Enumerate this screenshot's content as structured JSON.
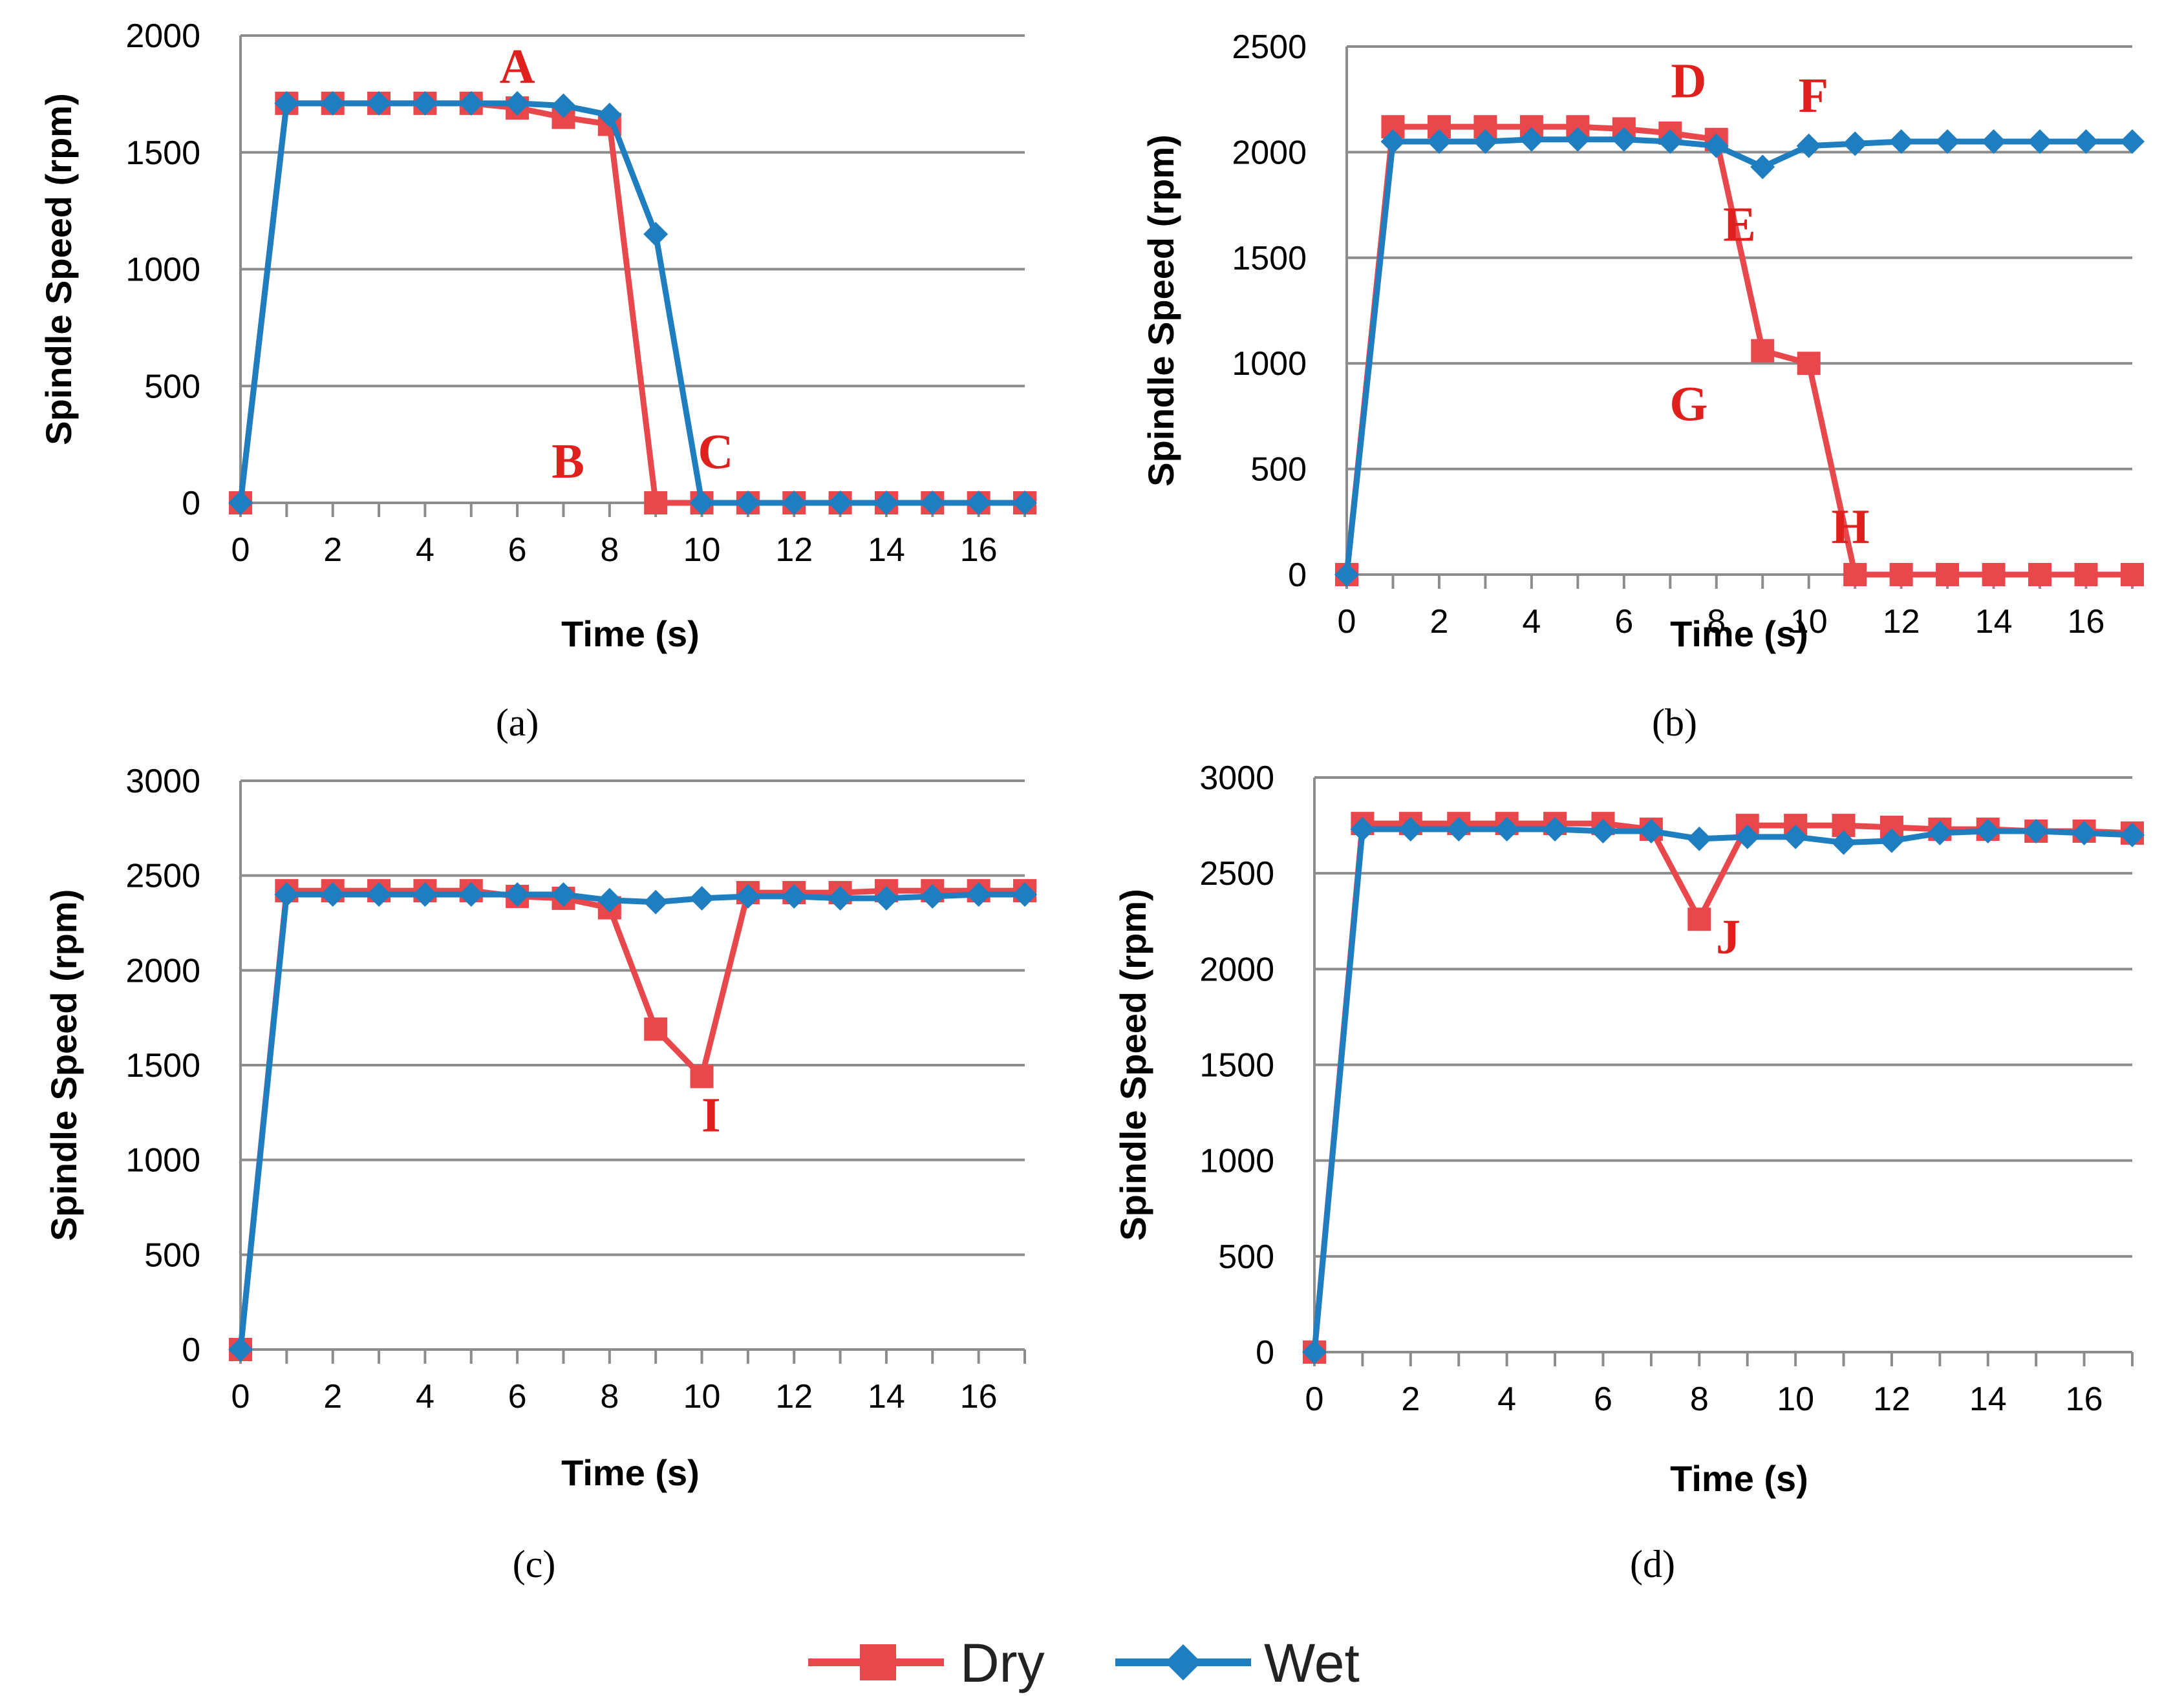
{
  "colors": {
    "dry": "#e8474c",
    "dry_marker": "#e8474c",
    "wet": "#1f7ebf",
    "wet_marker": "#1f7ebf",
    "annotation": "#e0201c",
    "grid": "#8c8c8c"
  },
  "legend": {
    "placement": "bottom-center",
    "items": [
      {
        "name": "Dry",
        "marker": "square",
        "color": "#e8474c"
      },
      {
        "name": "Wet",
        "marker": "diamond",
        "color": "#1f7ebf"
      }
    ]
  },
  "chart_data": [
    {
      "type": "line",
      "panel": "(a)",
      "xlabel": "Time (s)",
      "ylabel": "Spindle Speed (rpm)",
      "xlim": [
        0,
        17
      ],
      "ylim": [
        0,
        2000
      ],
      "xticks": [
        "0",
        "2",
        "4",
        "6",
        "8",
        "10",
        "12",
        "14",
        "16"
      ],
      "yticks": [
        "0",
        "500",
        "1000",
        "1500",
        "2000"
      ],
      "grid": true,
      "x": [
        0,
        1,
        2,
        3,
        4,
        5,
        6,
        7,
        8,
        9,
        10,
        11,
        12,
        13,
        14,
        15,
        16,
        17
      ],
      "series": [
        {
          "name": "Dry",
          "values": [
            0,
            1710,
            1710,
            1710,
            1710,
            1710,
            1690,
            1650,
            1620,
            0,
            0,
            0,
            0,
            0,
            0,
            0,
            0,
            0
          ]
        },
        {
          "name": "Wet",
          "values": [
            0,
            1710,
            1710,
            1710,
            1710,
            1710,
            1710,
            1700,
            1660,
            1150,
            0,
            0,
            0,
            0,
            0,
            0,
            0,
            0
          ]
        }
      ],
      "annotations": [
        {
          "text": "A",
          "x": 6,
          "y": 1870
        },
        {
          "text": "B",
          "x": 7.1,
          "y": 180
        },
        {
          "text": "C",
          "x": 10.3,
          "y": 220
        }
      ]
    },
    {
      "type": "line",
      "panel": "(b)",
      "xlabel": "Time (s)",
      "ylabel": "Spindle Speed (rpm)",
      "xlim": [
        0,
        17
      ],
      "ylim": [
        0,
        2500
      ],
      "xticks": [
        "0",
        "2",
        "4",
        "6",
        "8",
        "10",
        "12",
        "14",
        "16"
      ],
      "yticks": [
        "0",
        "500",
        "1000",
        "1500",
        "2000",
        "2500"
      ],
      "grid": true,
      "x": [
        0,
        1,
        2,
        3,
        4,
        5,
        6,
        7,
        8,
        9,
        10,
        11,
        12,
        13,
        14,
        15,
        16,
        17
      ],
      "series": [
        {
          "name": "Dry",
          "values": [
            0,
            2120,
            2120,
            2120,
            2120,
            2120,
            2110,
            2090,
            2060,
            1060,
            1000,
            0,
            0,
            0,
            0,
            0,
            0,
            0
          ]
        },
        {
          "name": "Wet",
          "values": [
            0,
            2050,
            2050,
            2050,
            2060,
            2060,
            2060,
            2050,
            2030,
            1930,
            2030,
            2040,
            2050,
            2050,
            2050,
            2050,
            2050,
            2050
          ]
        }
      ],
      "annotations": [
        {
          "text": "D",
          "x": 7.4,
          "y": 2340
        },
        {
          "text": "E",
          "x": 8.5,
          "y": 1660
        },
        {
          "text": "F",
          "x": 10.1,
          "y": 2270
        },
        {
          "text": "G",
          "x": 7.4,
          "y": 810
        },
        {
          "text": "H",
          "x": 10.9,
          "y": 230
        }
      ]
    },
    {
      "type": "line",
      "panel": "(c)",
      "xlabel": "Time (s)",
      "ylabel": "Spindle Speed (rpm)",
      "xlim": [
        0,
        17
      ],
      "ylim": [
        0,
        3000
      ],
      "xticks": [
        "0",
        "2",
        "4",
        "6",
        "8",
        "10",
        "12",
        "14",
        "16"
      ],
      "yticks": [
        "0",
        "500",
        "1000",
        "1500",
        "2000",
        "2500",
        "3000"
      ],
      "grid": true,
      "x": [
        0,
        1,
        2,
        3,
        4,
        5,
        6,
        7,
        8,
        9,
        10,
        11,
        12,
        13,
        14,
        15,
        16,
        17
      ],
      "series": [
        {
          "name": "Dry",
          "values": [
            0,
            2420,
            2420,
            2420,
            2420,
            2420,
            2390,
            2380,
            2330,
            1690,
            1440,
            2410,
            2410,
            2410,
            2420,
            2420,
            2420,
            2420
          ]
        },
        {
          "name": "Wet",
          "values": [
            0,
            2400,
            2400,
            2400,
            2400,
            2400,
            2400,
            2400,
            2370,
            2360,
            2380,
            2390,
            2390,
            2380,
            2380,
            2390,
            2400,
            2400
          ]
        }
      ],
      "annotations": [
        {
          "text": "I",
          "x": 10.2,
          "y": 1240
        }
      ]
    },
    {
      "type": "line",
      "panel": "(d)",
      "xlabel": "Time (s)",
      "ylabel": "Spindle Speed (rpm)",
      "xlim": [
        0,
        17
      ],
      "ylim": [
        0,
        3000
      ],
      "xticks": [
        "0",
        "2",
        "4",
        "6",
        "8",
        "10",
        "12",
        "14",
        "16"
      ],
      "yticks": [
        "0",
        "500",
        "1000",
        "1500",
        "2000",
        "2500",
        "3000"
      ],
      "grid": true,
      "x": [
        0,
        1,
        2,
        3,
        4,
        5,
        6,
        7,
        8,
        9,
        10,
        11,
        12,
        13,
        14,
        15,
        16,
        17
      ],
      "series": [
        {
          "name": "Dry",
          "values": [
            0,
            2760,
            2760,
            2760,
            2760,
            2760,
            2760,
            2730,
            2260,
            2750,
            2750,
            2750,
            2740,
            2730,
            2730,
            2720,
            2720,
            2710
          ]
        },
        {
          "name": "Wet",
          "values": [
            0,
            2730,
            2730,
            2730,
            2730,
            2730,
            2720,
            2720,
            2680,
            2690,
            2690,
            2660,
            2670,
            2710,
            2720,
            2720,
            2710,
            2700
          ]
        }
      ],
      "annotations": [
        {
          "text": "J",
          "x": 8.6,
          "y": 2170
        }
      ]
    }
  ]
}
